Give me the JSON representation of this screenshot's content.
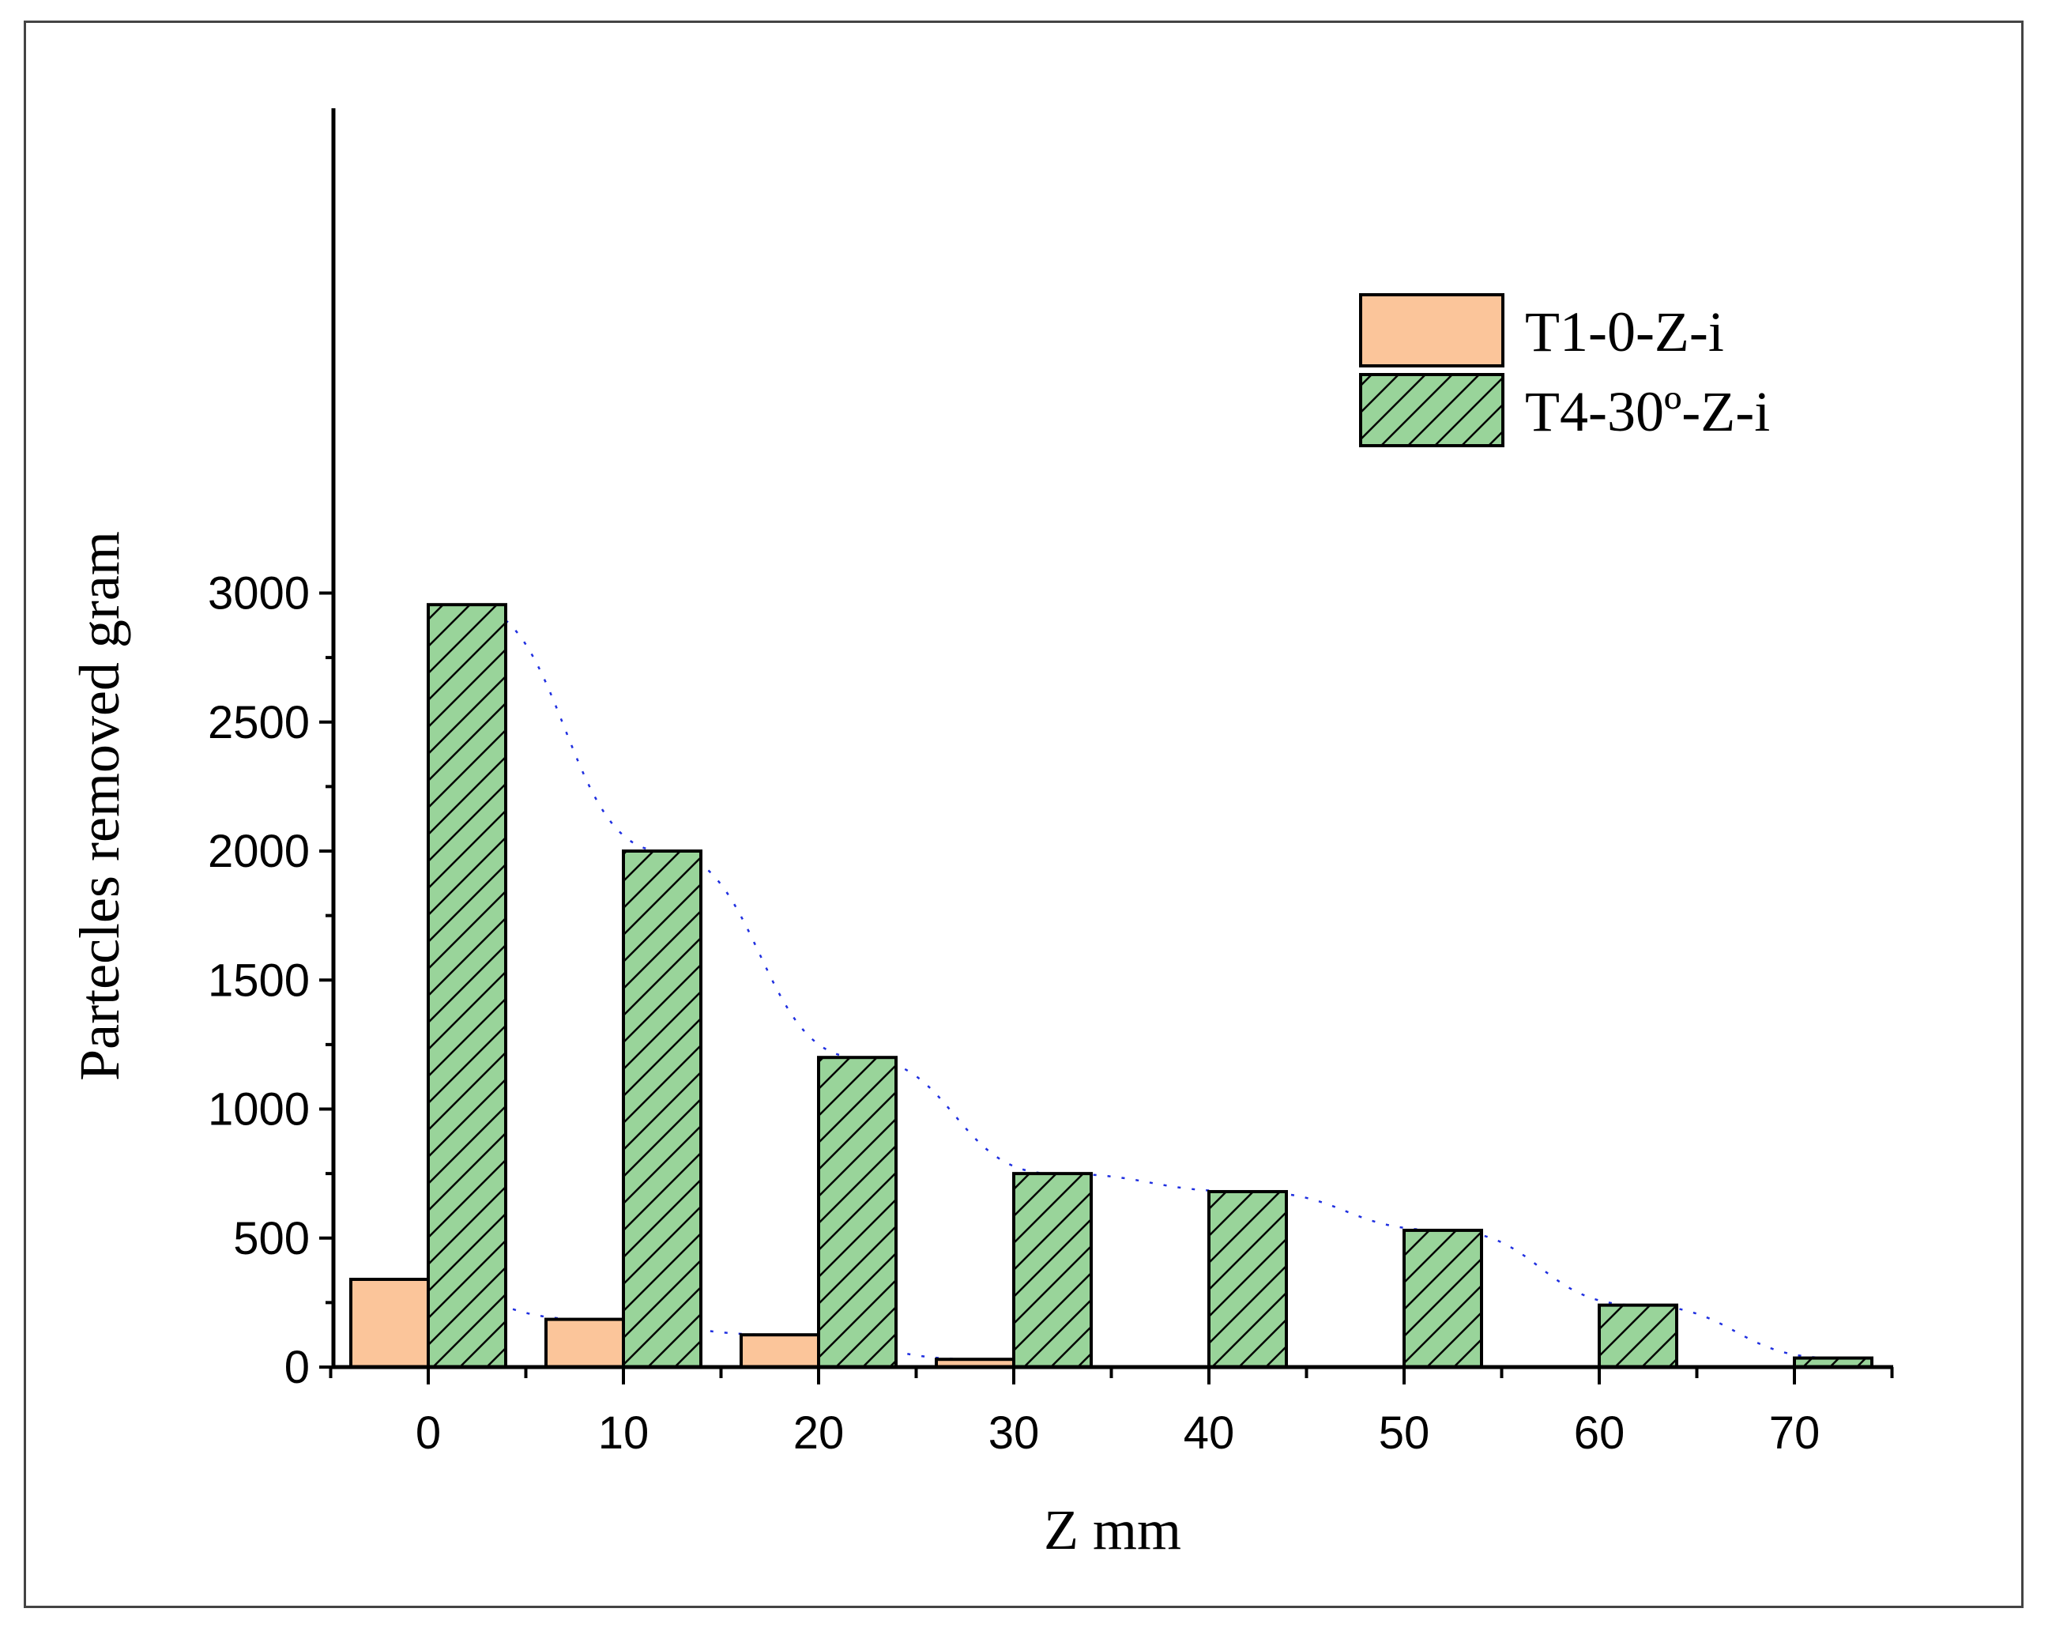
{
  "chart_data": {
    "type": "bar",
    "xlabel": "Z mm",
    "ylabel": "Partecles removed gram",
    "categories": [
      0,
      10,
      20,
      30,
      40,
      50,
      60,
      70
    ],
    "ylim": [
      0,
      3250
    ],
    "xlim": [
      -5,
      75
    ],
    "yticks": [
      0,
      500,
      1000,
      1500,
      2000,
      2500,
      3000
    ],
    "xticks": [
      0,
      10,
      20,
      30,
      40,
      50,
      60,
      70
    ],
    "series": [
      {
        "name": "T1-0-Z-i",
        "values": [
          340,
          185,
          125,
          30,
          0,
          0,
          0,
          0
        ],
        "color": "#fbc59a",
        "pattern": "solid",
        "trend": {
          "color": "#1f2fe0",
          "style": "dotted"
        }
      },
      {
        "name": "T4-30º-Z-i",
        "values": [
          2955,
          2000,
          1200,
          750,
          680,
          530,
          240,
          35
        ],
        "color": "#99d49a",
        "pattern": "diagonal-hatch",
        "trend": {
          "color": "#1f2fe0",
          "style": "dotted"
        }
      }
    ],
    "legend": {
      "position": "top-right"
    },
    "grid": false
  }
}
